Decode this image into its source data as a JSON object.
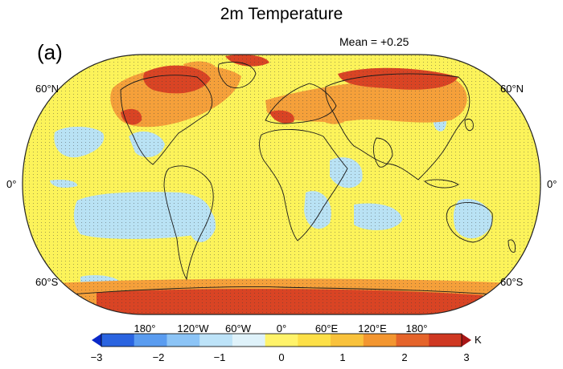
{
  "title": "2m Temperature",
  "panel_label": "(a)",
  "mean_label": "Mean = +0.25",
  "lat_labels": {
    "n60": "60°N",
    "eq": "0°",
    "s60": "60°S"
  },
  "lon_labels": [
    "180°",
    "120°W",
    "60°W",
    "0°",
    "60°E",
    "120°E",
    "180°"
  ],
  "colorbar": {
    "unit": "K",
    "ticks": [
      "−3",
      "−2",
      "−1",
      "0",
      "1",
      "2",
      "3"
    ],
    "colors": [
      "#0a28c8",
      "#2a64e0",
      "#5a9cf0",
      "#8cc4f6",
      "#bde3f8",
      "#dff2fa",
      "#fff36a",
      "#fde047",
      "#f9c23c",
      "#f39630",
      "#e5642a",
      "#cf3822",
      "#a81616"
    ]
  },
  "map_colors": {
    "background": "#fcf35a",
    "blue": "#b9e2f4",
    "orange": "#f5a03a",
    "red": "#d94424"
  }
}
